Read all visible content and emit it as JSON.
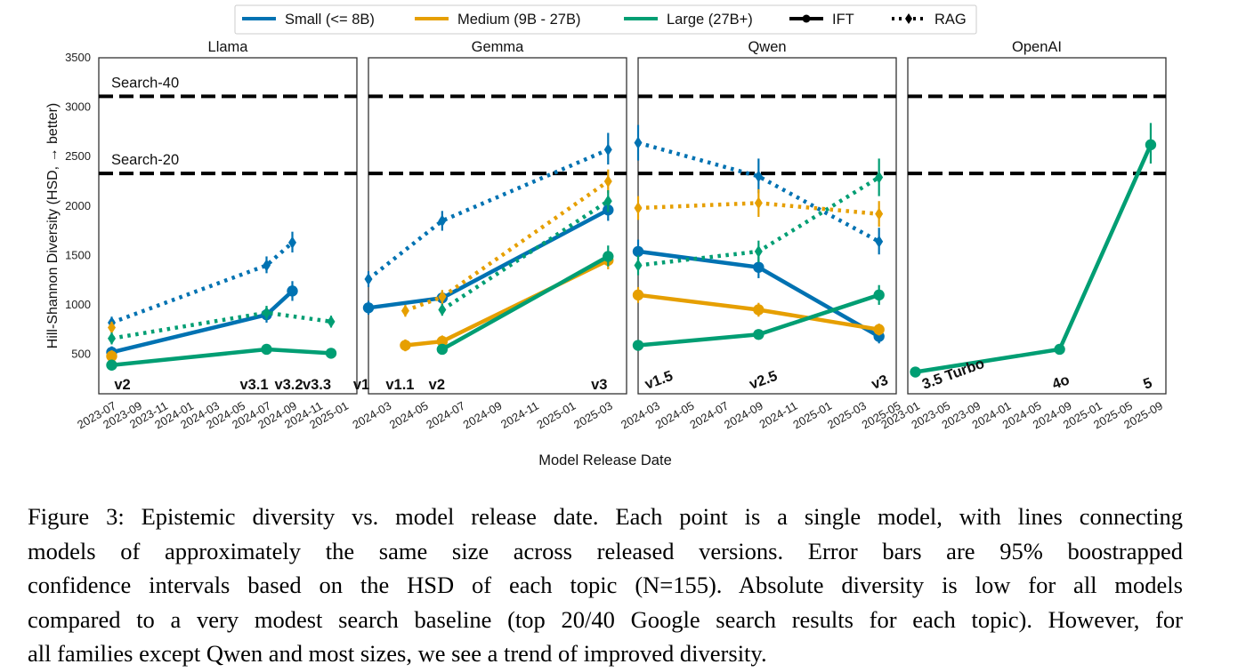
{
  "figure": {
    "y_axis_label": "Hill-Shannon Diversity (HSD, → better)",
    "x_axis_label": "Model Release Date",
    "caption_lines": [
      "Figure 3: Epistemic diversity vs. model release date. Each point is a single model, with lines connecting",
      "models of approximately the same size across released versions.  Error bars are 95% boostrapped",
      "confidence intervals based on the HSD of each topic (N=155). Absolute diversity is low for all models",
      "compared to a very modest search baseline (top 20/40 Google search results for each topic). However, for",
      "all families except Qwen and most sizes, we see a trend of improved diversity."
    ]
  },
  "legend": {
    "placement": "top-center",
    "entries": [
      {
        "label": "Small (<= 8B)",
        "kind": "size",
        "color": "#0072B2"
      },
      {
        "label": "Medium (9B - 27B)",
        "kind": "size",
        "color": "#E69F00"
      },
      {
        "label": "Large (27B+)",
        "kind": "size",
        "color": "#009E73"
      },
      {
        "label": "IFT",
        "kind": "method",
        "color": "#000000"
      },
      {
        "label": "RAG",
        "kind": "method",
        "color": "#000000"
      }
    ]
  },
  "colors": {
    "Small": "#0072B2",
    "Medium": "#E69F00",
    "Large": "#009E73",
    "baseline": "#000000"
  },
  "chart_data": [
    {
      "type": "line",
      "title": "Llama",
      "xlabel": "Model Release Date",
      "ylabel": "Hill-Shannon Diversity (HSD, → better)",
      "ylim": [
        100,
        3500
      ],
      "xlim": [
        "2023-06",
        "2025-02"
      ],
      "grid": false,
      "y_ticks": [
        500,
        1000,
        1500,
        2000,
        2500,
        3000,
        3500
      ],
      "x_ticks": [
        "2023-07",
        "2023-09",
        "2023-11",
        "2024-01",
        "2024-03",
        "2024-05",
        "2024-07",
        "2024-09",
        "2024-11",
        "2025-01"
      ],
      "baselines": [
        {
          "label": "Search-40",
          "value": 3110
        },
        {
          "label": "Search-20",
          "value": 2330
        }
      ],
      "version_labels": [
        {
          "text": "v2",
          "x": "2023-07"
        },
        {
          "text": "v3.1",
          "x": "2024-07"
        },
        {
          "text": "v3.2",
          "x": "2024-09"
        },
        {
          "text": "v3.3",
          "x": "2024-12"
        }
      ],
      "series": [
        {
          "size": "Small",
          "method": "IFT",
          "points": [
            {
              "x": "2023-07",
              "y": 520,
              "lo": 460,
              "hi": 580
            },
            {
              "x": "2024-07",
              "y": 900,
              "lo": 820,
              "hi": 980
            },
            {
              "x": "2024-09",
              "y": 1140,
              "lo": 1040,
              "hi": 1240
            }
          ]
        },
        {
          "size": "Small",
          "method": "RAG",
          "points": [
            {
              "x": "2023-07",
              "y": 820,
              "lo": 760,
              "hi": 880
            },
            {
              "x": "2024-07",
              "y": 1400,
              "lo": 1320,
              "hi": 1490
            },
            {
              "x": "2024-09",
              "y": 1630,
              "lo": 1530,
              "hi": 1740
            }
          ]
        },
        {
          "size": "Medium",
          "method": "IFT",
          "points": [
            {
              "x": "2023-07",
              "y": 480,
              "lo": 420,
              "hi": 540
            }
          ]
        },
        {
          "size": "Medium",
          "method": "RAG",
          "points": [
            {
              "x": "2023-07",
              "y": 770,
              "lo": 710,
              "hi": 830
            }
          ]
        },
        {
          "size": "Large",
          "method": "IFT",
          "points": [
            {
              "x": "2023-07",
              "y": 390,
              "lo": 350,
              "hi": 430
            },
            {
              "x": "2024-07",
              "y": 550,
              "lo": 510,
              "hi": 590
            },
            {
              "x": "2024-12",
              "y": 510,
              "lo": 470,
              "hi": 550
            }
          ]
        },
        {
          "size": "Large",
          "method": "RAG",
          "points": [
            {
              "x": "2023-07",
              "y": 660,
              "lo": 600,
              "hi": 720
            },
            {
              "x": "2024-07",
              "y": 920,
              "lo": 850,
              "hi": 990
            },
            {
              "x": "2024-12",
              "y": 830,
              "lo": 770,
              "hi": 890
            }
          ]
        }
      ]
    },
    {
      "type": "line",
      "title": "Gemma",
      "xlabel": "Model Release Date",
      "ylim": [
        100,
        3500
      ],
      "xlim": [
        "2024-02",
        "2025-04"
      ],
      "grid": false,
      "x_ticks": [
        "2024-03",
        "2024-05",
        "2024-07",
        "2024-09",
        "2024-11",
        "2025-01",
        "2025-03"
      ],
      "baselines": [
        {
          "label": "",
          "value": 3110
        },
        {
          "label": "",
          "value": 2330
        }
      ],
      "version_labels": [
        {
          "text": "v1",
          "x": "2024-02"
        },
        {
          "text": "v1.1",
          "x": "2024-04"
        },
        {
          "text": "v2",
          "x": "2024-06"
        },
        {
          "text": "v3",
          "x": "2025-03"
        }
      ],
      "series": [
        {
          "size": "Small",
          "method": "IFT",
          "points": [
            {
              "x": "2024-02",
              "y": 970,
              "lo": 900,
              "hi": 1040
            },
            {
              "x": "2024-06",
              "y": 1070,
              "lo": 1000,
              "hi": 1140
            },
            {
              "x": "2025-03",
              "y": 1960,
              "lo": 1850,
              "hi": 2070
            }
          ]
        },
        {
          "size": "Small",
          "method": "RAG",
          "points": [
            {
              "x": "2024-02",
              "y": 1260,
              "lo": 1180,
              "hi": 1340
            },
            {
              "x": "2024-06",
              "y": 1850,
              "lo": 1750,
              "hi": 1950
            },
            {
              "x": "2025-03",
              "y": 2570,
              "lo": 2420,
              "hi": 2740
            }
          ]
        },
        {
          "size": "Medium",
          "method": "IFT",
          "points": [
            {
              "x": "2024-04",
              "y": 590,
              "lo": 530,
              "hi": 650
            },
            {
              "x": "2024-06",
              "y": 630,
              "lo": 570,
              "hi": 690
            },
            {
              "x": "2025-03",
              "y": 1450,
              "lo": 1360,
              "hi": 1540
            }
          ]
        },
        {
          "size": "Medium",
          "method": "RAG",
          "points": [
            {
              "x": "2024-04",
              "y": 940,
              "lo": 880,
              "hi": 1000
            },
            {
              "x": "2024-06",
              "y": 1080,
              "lo": 1010,
              "hi": 1150
            },
            {
              "x": "2025-03",
              "y": 2250,
              "lo": 2130,
              "hi": 2370
            }
          ]
        },
        {
          "size": "Large",
          "method": "IFT",
          "points": [
            {
              "x": "2024-06",
              "y": 550,
              "lo": 500,
              "hi": 600
            },
            {
              "x": "2025-03",
              "y": 1490,
              "lo": 1390,
              "hi": 1600
            }
          ]
        },
        {
          "size": "Large",
          "method": "RAG",
          "points": [
            {
              "x": "2024-06",
              "y": 950,
              "lo": 890,
              "hi": 1010
            },
            {
              "x": "2025-03",
              "y": 2050,
              "lo": 1940,
              "hi": 2160
            }
          ]
        }
      ]
    },
    {
      "type": "line",
      "title": "Qwen",
      "xlabel": "Model Release Date",
      "ylim": [
        100,
        3500
      ],
      "xlim": [
        "2024-02",
        "2025-05"
      ],
      "grid": false,
      "x_ticks": [
        "2024-03",
        "2024-05",
        "2024-07",
        "2024-09",
        "2024-11",
        "2025-01",
        "2025-03",
        "2025-05"
      ],
      "baselines": [
        {
          "label": "",
          "value": 3110
        },
        {
          "label": "",
          "value": 2330
        }
      ],
      "version_labels": [
        {
          "text": "v1.5",
          "x": "2024-02"
        },
        {
          "text": "v2.5",
          "x": "2024-09"
        },
        {
          "text": "v3",
          "x": "2025-04"
        }
      ],
      "series": [
        {
          "size": "Small",
          "method": "IFT",
          "points": [
            {
              "x": "2024-02",
              "y": 1540,
              "lo": 1430,
              "hi": 1660
            },
            {
              "x": "2024-09",
              "y": 1380,
              "lo": 1270,
              "hi": 1490
            },
            {
              "x": "2025-04",
              "y": 680,
              "lo": 610,
              "hi": 750
            }
          ]
        },
        {
          "size": "Small",
          "method": "RAG",
          "points": [
            {
              "x": "2024-02",
              "y": 2640,
              "lo": 2460,
              "hi": 2820
            },
            {
              "x": "2024-09",
              "y": 2300,
              "lo": 2130,
              "hi": 2480
            },
            {
              "x": "2025-04",
              "y": 1640,
              "lo": 1510,
              "hi": 1780
            }
          ]
        },
        {
          "size": "Medium",
          "method": "IFT",
          "points": [
            {
              "x": "2024-02",
              "y": 1100,
              "lo": 1020,
              "hi": 1180
            },
            {
              "x": "2024-09",
              "y": 950,
              "lo": 880,
              "hi": 1020
            },
            {
              "x": "2025-04",
              "y": 750,
              "lo": 690,
              "hi": 810
            }
          ]
        },
        {
          "size": "Medium",
          "method": "RAG",
          "points": [
            {
              "x": "2024-02",
              "y": 1980,
              "lo": 1860,
              "hi": 2100
            },
            {
              "x": "2024-09",
              "y": 2030,
              "lo": 1890,
              "hi": 2170
            },
            {
              "x": "2025-04",
              "y": 1920,
              "lo": 1790,
              "hi": 2050
            }
          ]
        },
        {
          "size": "Large",
          "method": "IFT",
          "points": [
            {
              "x": "2024-02",
              "y": 590,
              "lo": 550,
              "hi": 630
            },
            {
              "x": "2024-09",
              "y": 700,
              "lo": 650,
              "hi": 750
            },
            {
              "x": "2025-04",
              "y": 1100,
              "lo": 1000,
              "hi": 1200
            }
          ]
        },
        {
          "size": "Large",
          "method": "RAG",
          "points": [
            {
              "x": "2024-02",
              "y": 1400,
              "lo": 1300,
              "hi": 1500
            },
            {
              "x": "2024-09",
              "y": 1540,
              "lo": 1430,
              "hi": 1650
            },
            {
              "x": "2025-04",
              "y": 2290,
              "lo": 2100,
              "hi": 2480
            }
          ]
        }
      ]
    },
    {
      "type": "line",
      "title": "OpenAI",
      "xlabel": "Model Release Date",
      "ylim": [
        100,
        3500
      ],
      "xlim": [
        "2022-12",
        "2025-10"
      ],
      "grid": false,
      "x_ticks": [
        "2023-01",
        "2023-05",
        "2023-09",
        "2024-01",
        "2024-05",
        "2024-09",
        "2025-01",
        "2025-05",
        "2025-09"
      ],
      "baselines": [
        {
          "label": "",
          "value": 3110
        },
        {
          "label": "",
          "value": 2330
        }
      ],
      "version_labels": [
        {
          "text": "3.5 Turbo",
          "x": "2023-01"
        },
        {
          "text": "4o",
          "x": "2024-08"
        },
        {
          "text": "5",
          "x": "2025-08"
        }
      ],
      "series": [
        {
          "size": "Large",
          "method": "IFT",
          "points": [
            {
              "x": "2023-01",
              "y": 320,
              "lo": 290,
              "hi": 350
            },
            {
              "x": "2024-08",
              "y": 550,
              "lo": 510,
              "hi": 590
            },
            {
              "x": "2025-08",
              "y": 2620,
              "lo": 2430,
              "hi": 2840
            }
          ]
        }
      ]
    }
  ]
}
